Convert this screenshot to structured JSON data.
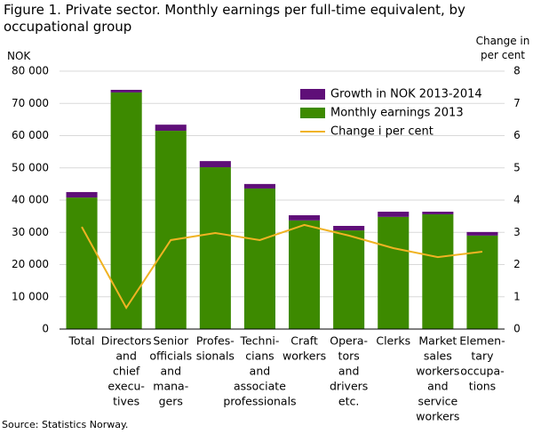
{
  "chart_data": {
    "type": "bar",
    "title": "Figure 1. Private sector. Monthly earnings per full-time equivalent, by occupational group",
    "y_label": "NOK",
    "y2_label": "Change in per cent",
    "source": "Source: Statistics Norway.",
    "categories": [
      [
        "Total"
      ],
      [
        "Directors",
        "and",
        "chief",
        "execu-",
        "tives"
      ],
      [
        "Senior",
        "officials",
        "and",
        "mana-",
        "gers"
      ],
      [
        "Profes-",
        "sionals"
      ],
      [
        "Techni-",
        "cians",
        "and",
        "associate",
        "professionals"
      ],
      [
        "Craft",
        "workers"
      ],
      [
        "Opera-",
        "tors",
        "and",
        "drivers",
        "etc."
      ],
      [
        "Clerks"
      ],
      [
        "Market",
        "sales",
        "workers",
        "and",
        "service",
        "workers"
      ],
      [
        "Elemen-",
        "tary",
        "occupa-",
        "tions"
      ]
    ],
    "series": [
      {
        "name": "Growth in NOK 2013-2014",
        "color": "#5f0f78",
        "values": [
          1700,
          800,
          1900,
          1900,
          1400,
          1600,
          1400,
          1600,
          800,
          1100
        ]
      },
      {
        "name": "Monthly earnings 2013",
        "color": "#3d8a00",
        "values": [
          40800,
          73400,
          61500,
          50200,
          43600,
          33700,
          30600,
          34800,
          35600,
          29000
        ]
      },
      {
        "name": "Change i per cent",
        "color": "#f0b323",
        "axis": "y2",
        "type": "line",
        "values": [
          3.17,
          0.66,
          2.76,
          2.98,
          2.76,
          3.23,
          2.9,
          2.51,
          2.23,
          2.4
        ]
      }
    ],
    "ylim": [
      0,
      80000
    ],
    "yticks": [
      0,
      {
        "value": 10000,
        "label": "10 000"
      },
      {
        "value": 20000,
        "label": "20 000"
      },
      {
        "value": 30000,
        "label": "30 000"
      },
      {
        "value": 40000,
        "label": "40 000"
      },
      {
        "value": 50000,
        "label": "50 000"
      },
      {
        "value": 60000,
        "label": "60 000"
      },
      {
        "value": 70000,
        "label": "70 000"
      },
      {
        "value": 80000,
        "label": "80 000"
      }
    ],
    "y2lim": [
      0,
      8
    ],
    "y2ticks": [
      0,
      1,
      2,
      3,
      4,
      5,
      6,
      7,
      8
    ],
    "grid": true,
    "legend": "top-right"
  }
}
